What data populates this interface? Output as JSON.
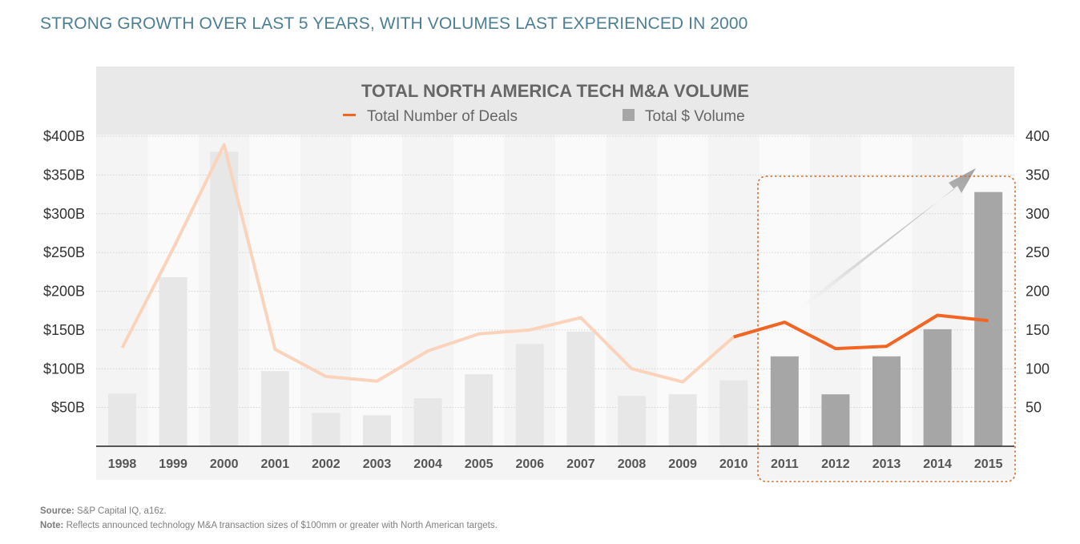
{
  "headline": "STRONG GROWTH OVER LAST 5 YEARS, WITH VOLUMES LAST EXPERIENCED IN 2000",
  "chart_data": {
    "type": "bar",
    "title": "TOTAL NORTH AMERICA TECH M&A VOLUME",
    "categories": [
      "1998",
      "1999",
      "2000",
      "2001",
      "2002",
      "2003",
      "2004",
      "2005",
      "2006",
      "2007",
      "2008",
      "2009",
      "2010",
      "2011",
      "2012",
      "2013",
      "2014",
      "2015"
    ],
    "series": [
      {
        "name": "Total $ Volume",
        "kind": "bar",
        "axis": "left",
        "values": [
          68,
          218,
          380,
          97,
          43,
          40,
          62,
          93,
          132,
          148,
          65,
          67,
          85,
          116,
          67,
          116,
          151,
          328
        ]
      },
      {
        "name": "Total Number of Deals",
        "kind": "line",
        "axis": "right",
        "values": [
          127,
          255,
          389,
          125,
          90,
          84,
          123,
          145,
          150,
          166,
          100,
          83,
          141,
          160,
          126,
          129,
          169,
          162
        ]
      }
    ],
    "left_axis": {
      "ticks": [
        "$50B",
        "$100B",
        "$150B",
        "$200B",
        "$250B",
        "$300B",
        "$350B",
        "$400B"
      ],
      "range": [
        0,
        400
      ]
    },
    "right_axis": {
      "ticks": [
        "50",
        "100",
        "150",
        "200",
        "250",
        "300",
        "350",
        "400"
      ],
      "range": [
        0,
        400
      ]
    },
    "highlight_categories": [
      "2011",
      "2012",
      "2013",
      "2014",
      "2015"
    ],
    "legend_position": "top-center",
    "colors": {
      "line": "#f26522",
      "line_faded": "#fbd3bb",
      "bar": "#a6a6a6",
      "bar_faded": "#e7e7e7",
      "highlight_border": "#d2692d"
    }
  },
  "legend": {
    "line_label": "Total Number of Deals",
    "bar_label": "Total $ Volume"
  },
  "footnotes": {
    "source_label": "Source:",
    "source_text": "S&P Capital IQ, a16z.",
    "note_label": "Note:",
    "note_text": "Reflects announced technology M&A transaction sizes of $100mm or greater with North American targets."
  }
}
